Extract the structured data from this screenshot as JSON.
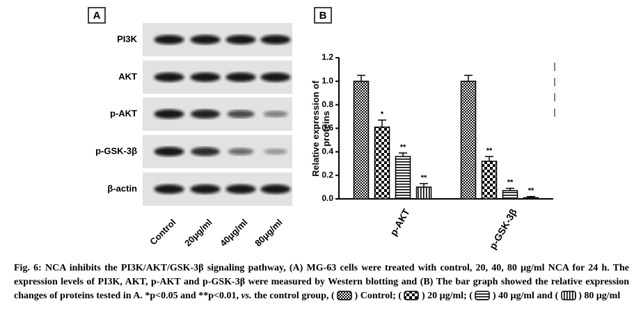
{
  "panel_a": {
    "label": "A",
    "rows": [
      "PI3K",
      "AKT",
      "p-AKT",
      "p-GSK-3β",
      "β-actin"
    ],
    "lanes": [
      "Control",
      "20μg/ml",
      "40μg/ml",
      "80μg/ml"
    ]
  },
  "chart_data": {
    "type": "bar",
    "label": "B",
    "ylabel": [
      "Relative expression of",
      "proteins"
    ],
    "categories": [
      "p-AKT",
      "p-GSK-3β"
    ],
    "series": [
      {
        "name": "Control",
        "color": "#000000",
        "pattern": "fine-check",
        "values": [
          1.0,
          1.0
        ],
        "errors": [
          0.05,
          0.05
        ]
      },
      {
        "name": "20 μg/ml",
        "color": "#000000",
        "pattern": "checker",
        "values": [
          0.61,
          0.32
        ],
        "errors": [
          0.06,
          0.04
        ],
        "annotations": [
          "*",
          "**"
        ]
      },
      {
        "name": "40 μg/ml",
        "color": "#000000",
        "pattern": "horizontal-stripes",
        "values": [
          0.36,
          0.07
        ],
        "errors": [
          0.03,
          0.02
        ],
        "annotations": [
          "**",
          "**"
        ]
      },
      {
        "name": "80 μg/ml",
        "color": "#000000",
        "pattern": "vertical-stripes",
        "values": [
          0.1,
          0.01
        ],
        "errors": [
          0.03,
          0.01
        ],
        "annotations": [
          "**",
          "**"
        ]
      }
    ],
    "ylim": [
      0,
      1.2
    ],
    "yticks": [
      {
        "value": 0,
        "label": "0.0"
      },
      0.2,
      0.4,
      0.6,
      0.8,
      {
        "value": 1,
        "label": "1.0"
      },
      1.2
    ]
  },
  "caption": {
    "before": "Fig. 6: NCA inhibits the PI3K/AKT/GSK-3β signaling pathway, (A) MG-63 cells were treated with control, 20, 40, 80 μg/ml NCA for 24 h. The expression levels of PI3K, AKT, p-AKT and p-GSK-3β were measured by Western blotting and (B) The bar graph showed the relative expression changes of proteins tested in A. *p<0.05 and **p<0.01,",
    "emphasis": "vs.",
    "after": "the control group,",
    "open": "(",
    "close": ")",
    "joins": [
      ";",
      ";",
      "and"
    ]
  }
}
